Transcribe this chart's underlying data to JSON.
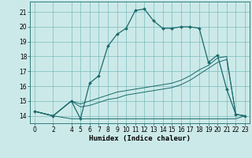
{
  "xlabel": "Humidex (Indice chaleur)",
  "bg_color": "#cce9e9",
  "grid_color": "#7bbcbc",
  "line_color": "#1a6b6b",
  "xlim": [
    -0.5,
    23.5
  ],
  "ylim": [
    13.5,
    21.7
  ],
  "yticks": [
    14,
    15,
    16,
    17,
    18,
    19,
    20,
    21
  ],
  "xticks": [
    0,
    2,
    4,
    5,
    6,
    7,
    8,
    9,
    10,
    11,
    12,
    13,
    14,
    15,
    16,
    17,
    18,
    19,
    20,
    21,
    22,
    23
  ],
  "line1_x": [
    0,
    2,
    4,
    5,
    6,
    7,
    8,
    9,
    10,
    11,
    12,
    13,
    14,
    15,
    16,
    17,
    18,
    19,
    20,
    21,
    22,
    23
  ],
  "line1_y": [
    14.3,
    14.0,
    15.0,
    13.8,
    16.2,
    16.7,
    18.7,
    19.5,
    19.9,
    21.1,
    21.2,
    20.4,
    19.9,
    19.9,
    20.0,
    20.0,
    19.9,
    17.6,
    18.1,
    15.8,
    14.1,
    14.0
  ],
  "line2_x": [
    0,
    2,
    4,
    5,
    6,
    7,
    8,
    9,
    10,
    11,
    12,
    13,
    14,
    15,
    16,
    17,
    18,
    19,
    20,
    21,
    22,
    23
  ],
  "line2_y": [
    14.3,
    14.0,
    13.8,
    13.8,
    13.8,
    13.8,
    13.8,
    13.8,
    13.8,
    13.8,
    13.8,
    13.8,
    13.8,
    13.8,
    13.8,
    13.8,
    13.8,
    13.8,
    13.8,
    13.8,
    13.8,
    14.0
  ],
  "line3_x": [
    0,
    2,
    4,
    5,
    6,
    7,
    8,
    9,
    10,
    11,
    12,
    13,
    14,
    15,
    16,
    17,
    18,
    19,
    20,
    21,
    22,
    23
  ],
  "line3_y": [
    14.3,
    14.0,
    15.0,
    14.6,
    14.7,
    14.9,
    15.1,
    15.2,
    15.4,
    15.5,
    15.6,
    15.7,
    15.8,
    15.9,
    16.1,
    16.4,
    16.8,
    17.2,
    17.6,
    17.8,
    14.1,
    14.0
  ],
  "line4_x": [
    0,
    2,
    4,
    5,
    6,
    7,
    8,
    9,
    10,
    11,
    12,
    13,
    14,
    15,
    16,
    17,
    18,
    19,
    20,
    21,
    22,
    23
  ],
  "line4_y": [
    14.3,
    14.0,
    15.0,
    14.8,
    15.0,
    15.2,
    15.4,
    15.6,
    15.7,
    15.8,
    15.9,
    16.0,
    16.1,
    16.2,
    16.4,
    16.7,
    17.1,
    17.4,
    17.9,
    18.0,
    14.1,
    14.0
  ],
  "xlabel_fontsize": 6.5,
  "tick_fontsize": 5.5
}
